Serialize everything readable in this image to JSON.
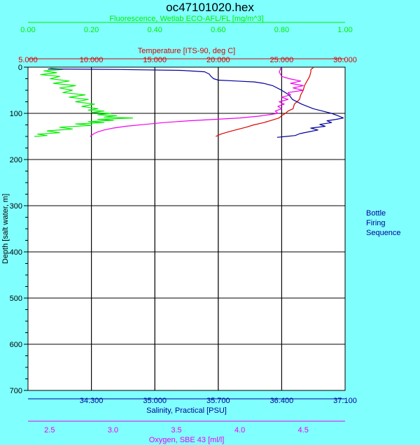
{
  "chart_data": {
    "type": "line",
    "title": "oc47101020.hex",
    "legend_text": [
      "Bottle",
      "Firing",
      "Sequence"
    ],
    "colors": {
      "background": "#80ffff",
      "plot_background": "#ffffff",
      "grid": "#000000",
      "fluorescence": "#00ee00",
      "temperature": "#dd0000",
      "salinity": "#000099",
      "oxygen": "#ee00ee"
    },
    "grid": true,
    "y_axis": {
      "label": "Depth [salt water, m]",
      "range": [
        0,
        700
      ],
      "reversed": true,
      "ticks": [
        0,
        100,
        200,
        300,
        400,
        500,
        600,
        700
      ],
      "tick_labels": [
        "0",
        "100",
        "200",
        "300",
        "400",
        "500",
        "600",
        "700"
      ]
    },
    "x_axes": [
      {
        "key": "fluorescence",
        "label": "Fluorescence, Wetlab ECO-AFL/FL [mg/m^3]",
        "position": "top-outer",
        "range": [
          0.0,
          1.0
        ],
        "ticks": [
          0.0,
          0.2,
          0.4,
          0.6,
          0.8,
          1.0
        ],
        "tick_labels": [
          "0.00",
          "0.20",
          "0.40",
          "0.60",
          "0.80",
          "1.00"
        ]
      },
      {
        "key": "temperature",
        "label": "Temperature [ITS-90, deg C]",
        "position": "top-inner",
        "range": [
          5.0,
          30.0
        ],
        "ticks": [
          5,
          10,
          15,
          20,
          25,
          30
        ],
        "tick_labels": [
          "5.000",
          "10.000",
          "15.000",
          "20.000",
          "25.000",
          "30.000"
        ]
      },
      {
        "key": "salinity",
        "label": "Salinity, Practical [PSU]",
        "position": "bottom-inner",
        "range": [
          33.6,
          37.1
        ],
        "ticks": [
          34.3,
          35.0,
          35.7,
          36.4,
          37.1
        ],
        "tick_labels": [
          "34.300",
          "35.000",
          "35.700",
          "36.400",
          "37.100"
        ]
      },
      {
        "key": "oxygen",
        "label": "Oxygen, SBE 43 [ml/l]",
        "position": "bottom-outer",
        "range": [
          2.33,
          4.83
        ],
        "ticks": [
          2.5,
          3.0,
          3.5,
          4.0,
          4.5
        ],
        "tick_labels": [
          "2.5",
          "3.0",
          "3.5",
          "4.0",
          "4.5"
        ]
      }
    ],
    "series": [
      {
        "key": "fluorescence",
        "y": [
          2,
          5,
          8,
          12,
          16,
          20,
          25,
          30,
          35,
          40,
          45,
          50,
          55,
          60,
          65,
          70,
          75,
          80,
          85,
          90,
          93,
          95,
          98,
          100,
          103,
          105,
          108,
          110,
          113,
          115,
          118,
          120,
          123,
          126,
          130,
          134,
          138,
          142,
          145,
          148,
          150
        ],
        "x": [
          0.07,
          0.11,
          0.05,
          0.09,
          0.04,
          0.1,
          0.07,
          0.13,
          0.08,
          0.15,
          0.1,
          0.14,
          0.11,
          0.18,
          0.13,
          0.19,
          0.15,
          0.21,
          0.17,
          0.22,
          0.19,
          0.24,
          0.2,
          0.26,
          0.22,
          0.28,
          0.24,
          0.33,
          0.22,
          0.27,
          0.19,
          0.24,
          0.15,
          0.2,
          0.1,
          0.14,
          0.06,
          0.1,
          0.03,
          0.06,
          0.02
        ]
      },
      {
        "key": "temperature",
        "y": [
          1,
          3,
          5,
          10,
          20,
          30,
          40,
          50,
          60,
          70,
          80,
          90,
          95,
          100,
          105,
          110,
          115,
          120,
          125,
          130,
          135,
          140,
          145,
          150
        ],
        "x": [
          27.5,
          27.4,
          27.3,
          27.3,
          27.2,
          27.0,
          26.8,
          26.7,
          26.5,
          26.4,
          26.0,
          25.9,
          25.5,
          25.3,
          25.0,
          24.8,
          24.2,
          23.6,
          22.8,
          22.2,
          21.5,
          20.8,
          20.2,
          19.8
        ]
      },
      {
        "key": "salinity",
        "y": [
          4,
          5,
          7,
          10,
          15,
          20,
          25,
          28,
          30,
          32,
          35,
          40,
          50,
          60,
          70,
          80,
          90,
          95,
          100,
          105,
          110,
          113,
          116,
          120,
          124,
          128,
          132,
          136,
          140,
          144,
          148,
          150,
          152
        ],
        "x": [
          33.82,
          34.6,
          35.3,
          35.55,
          35.6,
          35.62,
          35.65,
          35.7,
          35.9,
          36.1,
          36.2,
          36.3,
          36.4,
          36.48,
          36.52,
          36.62,
          36.75,
          36.85,
          36.95,
          37.02,
          37.08,
          37.0,
          36.9,
          36.95,
          36.82,
          36.88,
          36.72,
          36.8,
          36.7,
          36.6,
          36.55,
          36.45,
          36.35
        ]
      },
      {
        "key": "oxygen",
        "y": [
          0,
          5,
          10,
          15,
          20,
          25,
          30,
          35,
          40,
          45,
          50,
          55,
          60,
          65,
          70,
          75,
          80,
          85,
          90,
          95,
          100,
          103,
          106,
          110,
          113,
          116,
          120,
          124,
          128,
          132,
          136,
          140,
          144,
          148,
          150
        ],
        "x": [
          4.32,
          4.32,
          4.31,
          4.32,
          4.33,
          4.39,
          4.48,
          4.4,
          4.5,
          4.42,
          4.5,
          4.38,
          4.4,
          4.33,
          4.38,
          4.31,
          4.35,
          4.3,
          4.33,
          4.28,
          4.3,
          4.23,
          4.15,
          4.0,
          3.8,
          3.6,
          3.4,
          3.25,
          3.1,
          3.0,
          2.93,
          2.88,
          2.85,
          2.83,
          2.82
        ]
      }
    ]
  }
}
